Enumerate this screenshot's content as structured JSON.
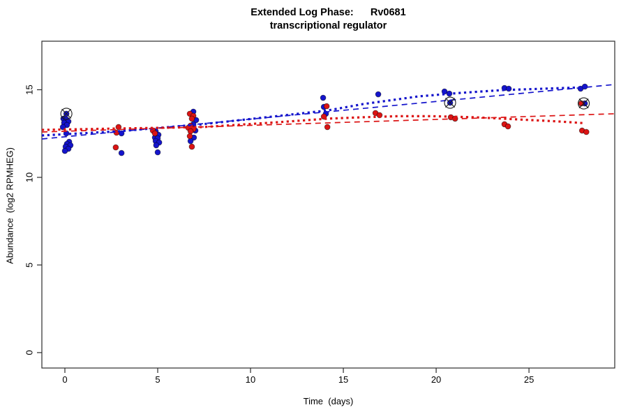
{
  "title": {
    "line1": "Extended Log Phase:      Rv0681",
    "line2": "transcriptional regulator"
  },
  "axes": {
    "x": {
      "label": "Time  (days)",
      "ticks": [
        0,
        5,
        10,
        15,
        20,
        25
      ],
      "lim": [
        -1.24,
        29.62
      ]
    },
    "y": {
      "label": "Abundance  (log2 RPMHEG)",
      "ticks": [
        0,
        5,
        10,
        15
      ],
      "lim": [
        -0.88,
        17.77
      ]
    }
  },
  "colors": {
    "blue": "#1414CC",
    "red": "#DC1414",
    "axis": "#2b2b2b",
    "highlight": "#1b1b1b"
  },
  "chart_data": {
    "type": "scatter",
    "xlabel": "Time  (days)",
    "ylabel": "Abundance  (log2 RPMHEG)",
    "grid": false,
    "legend": "none",
    "series": [
      {
        "name": "blue-condition",
        "color": "#1414CC",
        "points": [
          [
            -0.08,
            13.35
          ],
          [
            0.08,
            13.31
          ],
          [
            0.19,
            13.19
          ],
          [
            -0.04,
            13.11
          ],
          [
            0.11,
            12.99
          ],
          [
            -0.11,
            12.87
          ],
          [
            0.08,
            13.63
          ],
          [
            0.08,
            12.51
          ],
          [
            0.23,
            12.03
          ],
          [
            0.11,
            11.91
          ],
          [
            0.3,
            11.83
          ],
          [
            0.04,
            11.75
          ],
          [
            0.19,
            11.63
          ],
          [
            0.0,
            11.51
          ],
          [
            3.05,
            12.51
          ],
          [
            3.05,
            11.39
          ],
          [
            4.89,
            12.63
          ],
          [
            5.04,
            12.43
          ],
          [
            4.85,
            12.27
          ],
          [
            5.0,
            12.23
          ],
          [
            4.89,
            12.07
          ],
          [
            5.08,
            11.99
          ],
          [
            4.92,
            11.83
          ],
          [
            5.0,
            11.43
          ],
          [
            6.92,
            13.75
          ],
          [
            7.07,
            13.27
          ],
          [
            6.92,
            13.03
          ],
          [
            7.03,
            12.67
          ],
          [
            6.95,
            12.27
          ],
          [
            6.77,
            12.07
          ],
          [
            13.91,
            14.54
          ],
          [
            13.95,
            14.02
          ],
          [
            14.06,
            13.63
          ],
          [
            16.88,
            14.74
          ],
          [
            20.45,
            14.9
          ],
          [
            20.71,
            14.78
          ],
          [
            20.75,
            14.26
          ],
          [
            23.68,
            15.1
          ],
          [
            23.91,
            15.06
          ],
          [
            27.78,
            15.06
          ],
          [
            28.01,
            15.18
          ],
          [
            28.01,
            14.22
          ]
        ]
      },
      {
        "name": "red-condition",
        "color": "#DC1414",
        "points": [
          [
            2.89,
            12.87
          ],
          [
            2.78,
            12.55
          ],
          [
            2.74,
            11.71
          ],
          [
            4.74,
            12.67
          ],
          [
            4.85,
            12.51
          ],
          [
            6.73,
            13.63
          ],
          [
            6.92,
            13.51
          ],
          [
            6.84,
            13.35
          ],
          [
            6.77,
            12.95
          ],
          [
            6.65,
            12.83
          ],
          [
            6.92,
            12.75
          ],
          [
            6.77,
            12.63
          ],
          [
            6.73,
            12.35
          ],
          [
            6.84,
            11.75
          ],
          [
            14.1,
            14.06
          ],
          [
            13.95,
            13.47
          ],
          [
            14.14,
            12.87
          ],
          [
            16.73,
            13.67
          ],
          [
            16.95,
            13.55
          ],
          [
            20.79,
            13.43
          ],
          [
            21.02,
            13.35
          ],
          [
            23.68,
            13.03
          ],
          [
            23.87,
            12.91
          ],
          [
            27.82,
            14.22
          ],
          [
            27.86,
            12.67
          ],
          [
            28.09,
            12.59
          ]
        ]
      }
    ],
    "trend_lines": [
      {
        "name": "blue-dashed-fit",
        "color": "#1414CC",
        "style": "dashed",
        "points": [
          [
            -1.24,
            12.19
          ],
          [
            29.62,
            15.3
          ]
        ]
      },
      {
        "name": "red-dashed-fit",
        "color": "#DC1414",
        "style": "dashed",
        "points": [
          [
            -1.24,
            12.59
          ],
          [
            29.62,
            13.63
          ]
        ]
      },
      {
        "name": "blue-dotted-fit",
        "color": "#1414CC",
        "style": "dotted",
        "points": [
          [
            -1.24,
            12.39
          ],
          [
            2.89,
            12.63
          ],
          [
            7.41,
            13.03
          ],
          [
            11.54,
            13.51
          ],
          [
            14.17,
            13.82
          ],
          [
            16.05,
            14.18
          ],
          [
            19.06,
            14.62
          ],
          [
            21.32,
            14.82
          ],
          [
            23.57,
            14.98
          ],
          [
            28.0,
            15.14
          ]
        ]
      },
      {
        "name": "red-dotted-fit",
        "color": "#DC1414",
        "style": "dotted",
        "points": [
          [
            -1.24,
            12.71
          ],
          [
            2.89,
            12.79
          ],
          [
            7.41,
            12.87
          ],
          [
            11.54,
            13.15
          ],
          [
            14.17,
            13.35
          ],
          [
            16.05,
            13.43
          ],
          [
            17.93,
            13.49
          ],
          [
            19.81,
            13.49
          ],
          [
            22.07,
            13.43
          ],
          [
            24.32,
            13.31
          ],
          [
            26.58,
            13.19
          ],
          [
            28.0,
            13.09
          ]
        ]
      }
    ],
    "highlighted_points": [
      {
        "x": 0.08,
        "y": 13.63
      },
      {
        "x": 20.75,
        "y": 14.26
      },
      {
        "x": 27.95,
        "y": 14.22
      }
    ]
  }
}
